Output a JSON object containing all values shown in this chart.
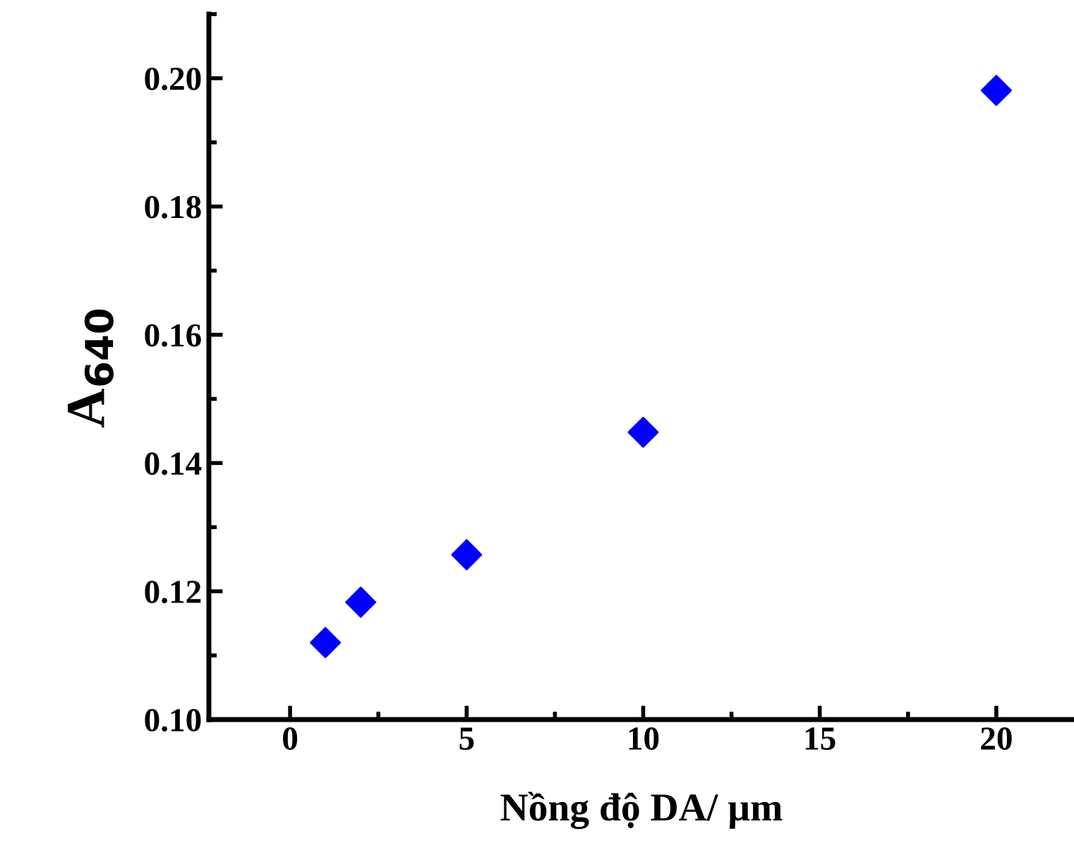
{
  "chart_data": {
    "type": "scatter",
    "xlabel": "Nồng độ DA/ µm",
    "ylabel": "A$_{640}$",
    "x": [
      1,
      2,
      5,
      10,
      20
    ],
    "series": [
      {
        "color": "#0000ff",
        "values": [
          0.112,
          0.1183,
          0.1257,
          0.1448,
          0.1981
        ]
      }
    ],
    "marker": "diamond",
    "xlim": [
      -2.3,
      22.2
    ],
    "ylim": [
      0.1,
      0.21
    ],
    "xticks": [
      0,
      5,
      10,
      15,
      20
    ],
    "yticks": [
      {
        "value": 0.1,
        "label": "0.10"
      },
      {
        "value": 0.12,
        "label": "0.12"
      },
      {
        "value": 0.14,
        "label": "0.14"
      },
      {
        "value": 0.16,
        "label": "0.16"
      },
      {
        "value": 0.18,
        "label": "0.18"
      },
      {
        "value": 0.2,
        "label": "0.20"
      }
    ],
    "grid": false,
    "legend": false
  }
}
